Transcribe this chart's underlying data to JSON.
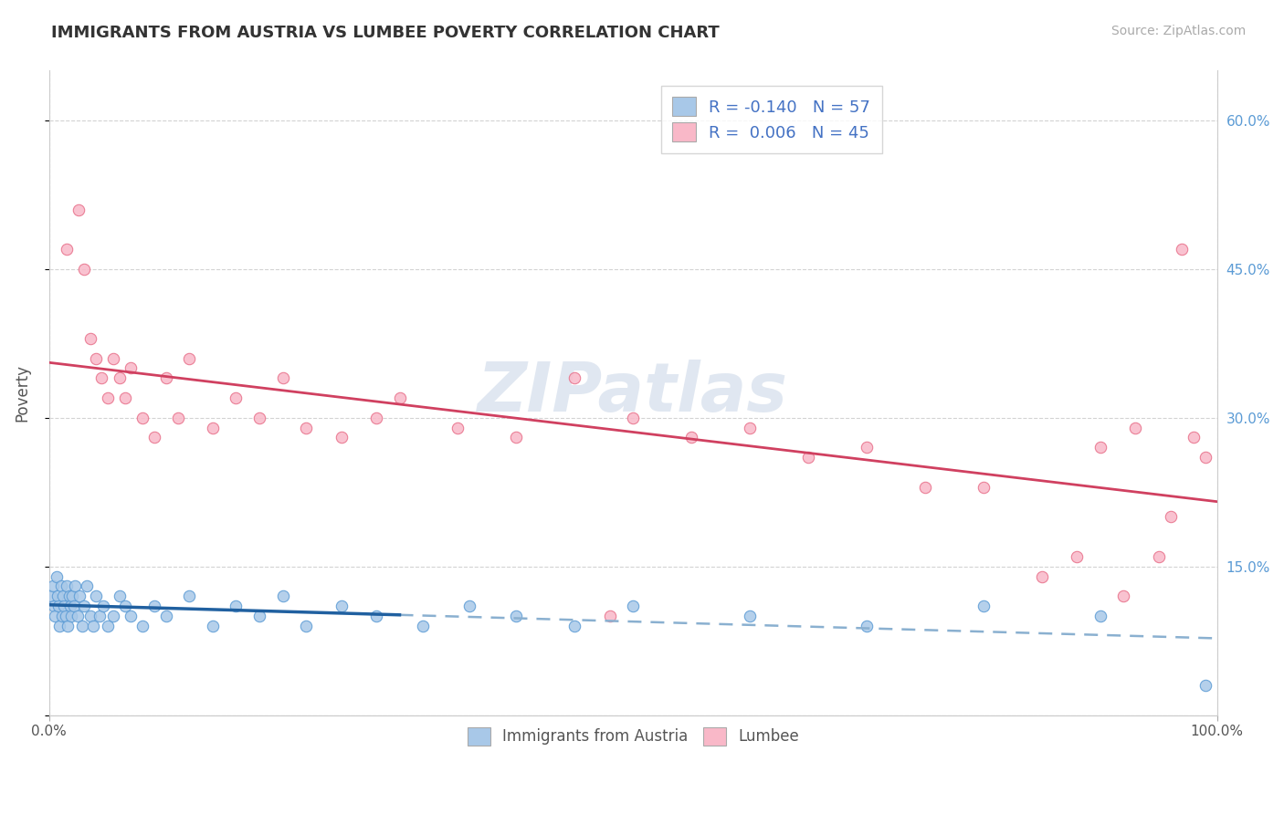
{
  "title": "IMMIGRANTS FROM AUSTRIA VS LUMBEE POVERTY CORRELATION CHART",
  "source_text": "Source: ZipAtlas.com",
  "ylabel": "Poverty",
  "xlim": [
    0,
    100
  ],
  "ylim": [
    0,
    65
  ],
  "yticks": [
    0,
    15,
    30,
    45,
    60
  ],
  "ytick_labels_right": [
    "",
    "15.0%",
    "30.0%",
    "45.0%",
    "60.0%"
  ],
  "xtick_labels": [
    "0.0%",
    "100.0%"
  ],
  "legend_label1": "R = -0.140   N = 57",
  "legend_label2": "R =  0.006   N = 45",
  "color_blue_fill": "#a8c8e8",
  "color_blue_edge": "#5b9bd5",
  "color_pink_fill": "#f9b8c8",
  "color_pink_edge": "#e8708a",
  "color_trend_blue_solid": "#2060a0",
  "color_trend_blue_dash": "#8ab0d0",
  "color_trend_pink": "#d04060",
  "color_watermark": "#ccd8e8",
  "background_color": "#ffffff",
  "grid_color": "#c8c8c8",
  "austria_x": [
    0.2,
    0.3,
    0.4,
    0.5,
    0.6,
    0.7,
    0.8,
    0.9,
    1.0,
    1.1,
    1.2,
    1.3,
    1.4,
    1.5,
    1.6,
    1.7,
    1.8,
    1.9,
    2.0,
    2.1,
    2.2,
    2.4,
    2.6,
    2.8,
    3.0,
    3.2,
    3.5,
    3.8,
    4.0,
    4.3,
    4.6,
    5.0,
    5.5,
    6.0,
    6.5,
    7.0,
    8.0,
    9.0,
    10.0,
    12.0,
    14.0,
    16.0,
    18.0,
    20.0,
    22.0,
    25.0,
    28.0,
    32.0,
    36.0,
    40.0,
    45.0,
    50.0,
    60.0,
    70.0,
    80.0,
    90.0,
    99.0
  ],
  "austria_y": [
    12.0,
    13.0,
    11.0,
    10.0,
    14.0,
    12.0,
    11.0,
    9.0,
    13.0,
    10.0,
    12.0,
    11.0,
    10.0,
    13.0,
    9.0,
    12.0,
    11.0,
    10.0,
    12.0,
    11.0,
    13.0,
    10.0,
    12.0,
    9.0,
    11.0,
    13.0,
    10.0,
    9.0,
    12.0,
    10.0,
    11.0,
    9.0,
    10.0,
    12.0,
    11.0,
    10.0,
    9.0,
    11.0,
    10.0,
    12.0,
    9.0,
    11.0,
    10.0,
    12.0,
    9.0,
    11.0,
    10.0,
    9.0,
    11.0,
    10.0,
    9.0,
    11.0,
    10.0,
    9.0,
    11.0,
    10.0,
    3.0
  ],
  "lumbee_x": [
    1.5,
    2.5,
    3.0,
    3.5,
    4.0,
    4.5,
    5.0,
    5.5,
    6.0,
    6.5,
    7.0,
    8.0,
    9.0,
    10.0,
    11.0,
    12.0,
    14.0,
    16.0,
    18.0,
    20.0,
    22.0,
    25.0,
    28.0,
    30.0,
    35.0,
    40.0,
    45.0,
    48.0,
    50.0,
    55.0,
    60.0,
    65.0,
    70.0,
    75.0,
    80.0,
    85.0,
    88.0,
    90.0,
    92.0,
    93.0,
    95.0,
    96.0,
    97.0,
    98.0,
    99.0
  ],
  "lumbee_y": [
    47.0,
    51.0,
    45.0,
    38.0,
    36.0,
    34.0,
    32.0,
    36.0,
    34.0,
    32.0,
    35.0,
    30.0,
    28.0,
    34.0,
    30.0,
    36.0,
    29.0,
    32.0,
    30.0,
    34.0,
    29.0,
    28.0,
    30.0,
    32.0,
    29.0,
    28.0,
    34.0,
    10.0,
    30.0,
    28.0,
    29.0,
    26.0,
    27.0,
    23.0,
    23.0,
    14.0,
    16.0,
    27.0,
    12.0,
    29.0,
    16.0,
    20.0,
    47.0,
    28.0,
    26.0
  ]
}
